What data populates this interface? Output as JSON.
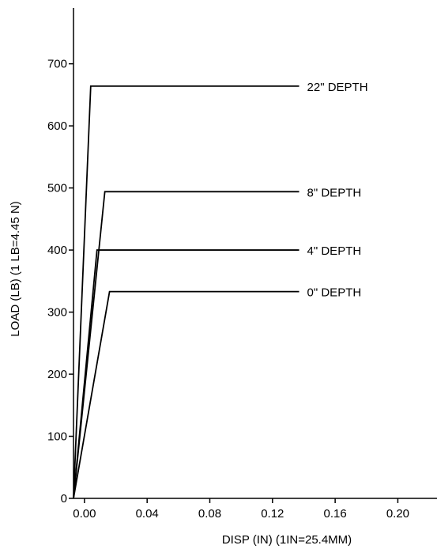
{
  "chart_data": {
    "type": "line",
    "title": "",
    "xlabel": "DISP (IN) (1IN=25.4MM)",
    "ylabel": "LOAD (LB) (1 LB=4.45 N)",
    "xlim": [
      -0.007,
      0.225
    ],
    "ylim": [
      0,
      790
    ],
    "xticks": [
      0.0,
      0.04,
      0.08,
      0.12,
      0.16,
      0.2
    ],
    "xtick_labels": [
      "0.00",
      "0.04",
      "0.08",
      "0.12",
      "0.16",
      "0.20"
    ],
    "yticks": [
      0,
      100,
      200,
      300,
      400,
      500,
      600,
      700
    ],
    "ytick_labels": [
      "0",
      "100",
      "200",
      "300",
      "400",
      "500",
      "600",
      "700"
    ],
    "grid": false,
    "legend": "labels at line ends",
    "series": [
      {
        "name": "22\" DEPTH",
        "x": [
          -0.007,
          0.004,
          0.137
        ],
        "y": [
          0,
          664,
          664
        ]
      },
      {
        "name": "8\" DEPTH",
        "x": [
          -0.007,
          0.013,
          0.137
        ],
        "y": [
          0,
          494,
          494
        ]
      },
      {
        "name": "4\" DEPTH",
        "x": [
          -0.007,
          0.008,
          0.137
        ],
        "y": [
          0,
          400,
          400
        ]
      },
      {
        "name": "0\" DEPTH",
        "x": [
          -0.007,
          0.016,
          0.137
        ],
        "y": [
          0,
          333,
          333
        ]
      }
    ]
  }
}
